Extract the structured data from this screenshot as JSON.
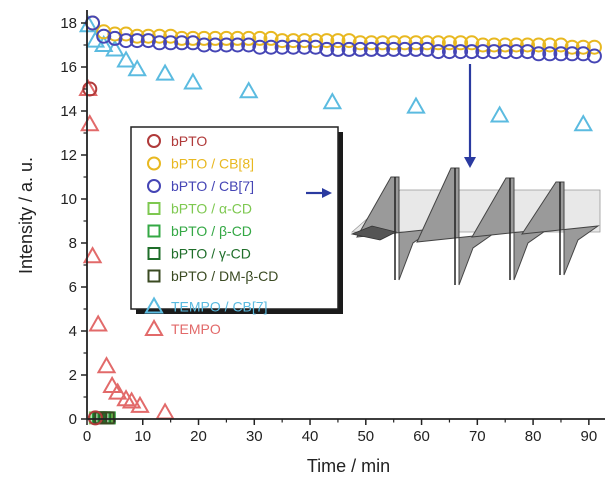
{
  "chart_data": {
    "type": "scatter",
    "title": "",
    "xlabel": "Time / min",
    "ylabel": "Intensity / a. u.",
    "xlim": [
      0,
      92
    ],
    "ylim": [
      0,
      18.5
    ],
    "x_ticks": [
      0,
      10,
      20,
      30,
      40,
      50,
      60,
      70,
      80,
      90
    ],
    "y_ticks": [
      0,
      2,
      4,
      6,
      8,
      10,
      12,
      14,
      16,
      18
    ],
    "x_tick_labels": [
      "0",
      "10",
      "20",
      "30",
      "40",
      "50",
      "60",
      "70",
      "80",
      "90"
    ],
    "y_tick_labels": [
      "0",
      "2",
      "4",
      "6",
      "8",
      "10",
      "12",
      "14",
      "16",
      "18"
    ],
    "grid": false,
    "legend_position": "center-left",
    "series": [
      {
        "name": "bPTO",
        "marker": "circle",
        "color": "#b03a3a",
        "x": [
          0.5,
          1.5
        ],
        "y": [
          15.0,
          0.05
        ]
      },
      {
        "name": "bPTO / CB[8]",
        "marker": "circle",
        "color": "#e8b820",
        "x": [
          1,
          3,
          5,
          7,
          9,
          11,
          13,
          15,
          17,
          19,
          21,
          23,
          25,
          27,
          29,
          31,
          33,
          35,
          37,
          39,
          41,
          43,
          45,
          47,
          49,
          51,
          53,
          55,
          57,
          59,
          61,
          63,
          65,
          67,
          69,
          71,
          73,
          75,
          77,
          79,
          81,
          83,
          85,
          87,
          89,
          91
        ],
        "y": [
          18.0,
          17.6,
          17.5,
          17.5,
          17.4,
          17.4,
          17.4,
          17.4,
          17.3,
          17.3,
          17.3,
          17.3,
          17.3,
          17.3,
          17.3,
          17.3,
          17.3,
          17.2,
          17.2,
          17.2,
          17.2,
          17.2,
          17.2,
          17.2,
          17.1,
          17.1,
          17.1,
          17.1,
          17.1,
          17.1,
          17.1,
          17.1,
          17.1,
          17.1,
          17.1,
          17.0,
          17.0,
          17.0,
          17.0,
          17.0,
          17.0,
          17.0,
          17.0,
          16.9,
          16.9,
          16.9
        ]
      },
      {
        "name": "bPTO / CB[7]",
        "marker": "circle",
        "color": "#4545b5",
        "x": [
          1,
          3,
          5,
          7,
          9,
          11,
          13,
          15,
          17,
          19,
          21,
          23,
          25,
          27,
          29,
          31,
          33,
          35,
          37,
          39,
          41,
          43,
          45,
          47,
          49,
          51,
          53,
          55,
          57,
          59,
          61,
          63,
          65,
          67,
          69,
          71,
          73,
          75,
          77,
          79,
          81,
          83,
          85,
          87,
          89,
          91
        ],
        "y": [
          18.0,
          17.4,
          17.3,
          17.2,
          17.2,
          17.2,
          17.1,
          17.1,
          17.1,
          17.1,
          17.0,
          17.0,
          17.0,
          17.0,
          17.0,
          16.9,
          16.9,
          16.9,
          16.9,
          16.9,
          16.9,
          16.8,
          16.8,
          16.8,
          16.8,
          16.8,
          16.8,
          16.8,
          16.8,
          16.8,
          16.8,
          16.7,
          16.7,
          16.7,
          16.7,
          16.7,
          16.7,
          16.7,
          16.7,
          16.7,
          16.6,
          16.6,
          16.6,
          16.6,
          16.6,
          16.5
        ]
      },
      {
        "name": "bPTO / α-CD",
        "marker": "square",
        "color": "#7ec850",
        "x": [
          1.5,
          2.5,
          3.5
        ],
        "y": [
          0.05,
          0.05,
          0.05
        ]
      },
      {
        "name": "bPTO / β-CD",
        "marker": "square",
        "color": "#34a845",
        "x": [
          2,
          3,
          4
        ],
        "y": [
          0.05,
          0.05,
          0.05
        ]
      },
      {
        "name": "bPTO / γ-CD",
        "marker": "square",
        "color": "#1f6e2a",
        "x": [
          2.2,
          3.2
        ],
        "y": [
          0.05,
          0.05
        ]
      },
      {
        "name": "bPTO / DM-β-CD",
        "marker": "square",
        "color": "#3a4a22",
        "x": [
          2.5,
          3.8
        ],
        "y": [
          0.05,
          0.05
        ]
      },
      {
        "name": "TEMPO / CB[7]",
        "marker": "triangle",
        "color": "#5bbbe0",
        "x": [
          0.3,
          1.5,
          3,
          5,
          7,
          9,
          14,
          19,
          29,
          44,
          59,
          74,
          89
        ],
        "y": [
          17.9,
          17.2,
          17.0,
          16.8,
          16.3,
          15.9,
          15.7,
          15.3,
          14.9,
          14.4,
          14.2,
          13.8,
          13.4
        ]
      },
      {
        "name": "TEMPO",
        "marker": "triangle",
        "color": "#e26a6a",
        "x": [
          0.2,
          0.5,
          1.0,
          2.0,
          3.5,
          4.5,
          5.5,
          7.0,
          8.0,
          9.5,
          14.0
        ],
        "y": [
          15.0,
          13.4,
          7.4,
          4.3,
          2.4,
          1.5,
          1.2,
          0.9,
          0.8,
          0.6,
          0.3
        ]
      }
    ]
  },
  "legend_groups": [
    [
      0,
      1,
      2,
      3,
      4,
      5,
      6
    ],
    [
      7,
      8
    ]
  ]
}
